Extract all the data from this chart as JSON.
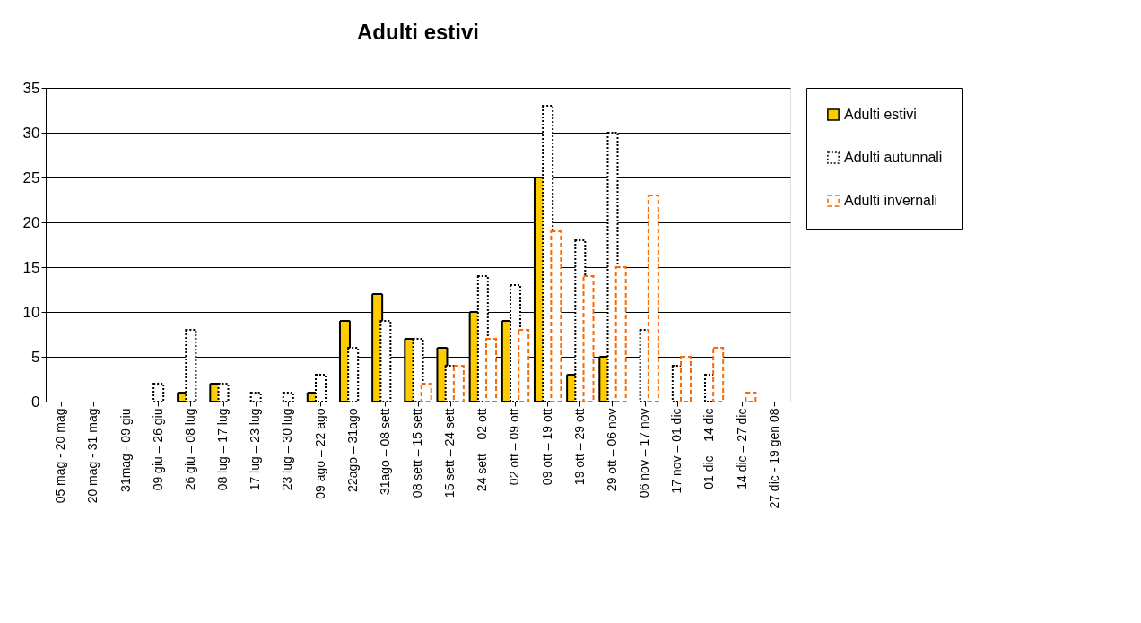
{
  "chart_data": {
    "type": "bar",
    "title": "Adulti estivi",
    "categories": [
      "05 mag - 20 mag",
      "20 mag - 31 mag",
      "31mag - 09 giu",
      "09 giu – 26 giu",
      "26 giu – 08 lug",
      "08 lug – 17 lug",
      "17 lug – 23 lug",
      "23 lug – 30 lug",
      "09 ago – 22 ago",
      "22ago – 31ago",
      "31ago – 08 sett",
      "08 sett – 15 sett",
      "15 sett – 24 sett",
      "24 sett – 02 ott",
      "02 ott – 09 ott",
      "09 ott – 19 ott",
      "19 ott – 29 ott",
      "29 ott – 06 nov",
      "06 nov – 17 nov",
      "17 nov – 01 dic",
      "01 dic – 14 dic",
      "14 dic – 27 dic",
      "27 dic - 19 gen 08"
    ],
    "series": [
      {
        "name": "Adulti estivi",
        "color": "#ffcc00",
        "line_style": "solid",
        "values": [
          0,
          0,
          0,
          0,
          1,
          2,
          0,
          0,
          1,
          9,
          12,
          7,
          6,
          10,
          9,
          25,
          3,
          5,
          0,
          0,
          0,
          0,
          0
        ]
      },
      {
        "name": "Adulti autunnali",
        "color": "#000000",
        "line_style": "dotted",
        "values": [
          0,
          0,
          0,
          2,
          8,
          2,
          1,
          1,
          3,
          6,
          9,
          7,
          4,
          14,
          13,
          33,
          18,
          30,
          8,
          4,
          3,
          0,
          0
        ]
      },
      {
        "name": "Adulti invernali",
        "color": "#ff6600",
        "line_style": "dashed",
        "values": [
          0,
          0,
          0,
          0,
          0,
          0,
          0,
          0,
          0,
          0,
          0,
          2,
          4,
          7,
          8,
          19,
          14,
          15,
          23,
          5,
          6,
          1,
          0
        ]
      }
    ],
    "ylim": [
      0,
      35
    ],
    "yticks": [
      0,
      5,
      10,
      15,
      20,
      25,
      30,
      35
    ],
    "grid": "y",
    "legend": "right"
  }
}
